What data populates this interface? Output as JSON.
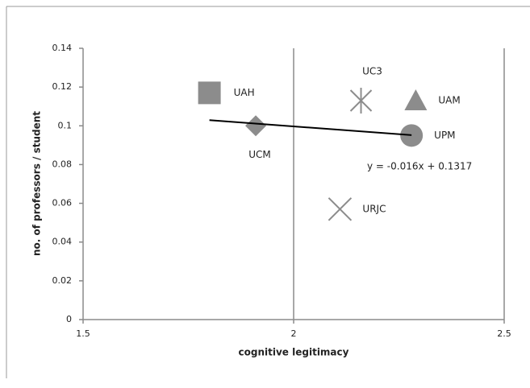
{
  "chart_data": {
    "type": "scatter",
    "xlabel": "cognitive legitimacy",
    "ylabel": "no. of professors / student",
    "xlim": [
      1.5,
      2.5
    ],
    "xticks": [
      1.5,
      2,
      2.5
    ],
    "ylim": [
      0,
      0.14
    ],
    "yticks": [
      0,
      0.02,
      0.04,
      0.06,
      0.08,
      0.1,
      0.12,
      0.14
    ],
    "grid": "x",
    "color": "#8c8c8c",
    "series": [
      {
        "name": "UAH",
        "marker": "square",
        "x": [
          1.8
        ],
        "values": [
          0.117
        ]
      },
      {
        "name": "UCM",
        "marker": "diamond",
        "x": [
          1.91
        ],
        "values": [
          0.1
        ]
      },
      {
        "name": "UC3",
        "marker": "star",
        "x": [
          2.16
        ],
        "values": [
          0.113
        ]
      },
      {
        "name": "UAM",
        "marker": "triangle",
        "x": [
          2.29
        ],
        "values": [
          0.113
        ]
      },
      {
        "name": "UPM",
        "marker": "circle",
        "x": [
          2.28
        ],
        "values": [
          0.095
        ]
      },
      {
        "name": "URJC",
        "marker": "cross",
        "x": [
          2.11
        ],
        "values": [
          0.057
        ]
      }
    ],
    "trendline": {
      "label": "y = -0.016x + 0.1317",
      "x": [
        1.8,
        2.28
      ],
      "values": [
        0.1029,
        0.0952
      ]
    }
  }
}
